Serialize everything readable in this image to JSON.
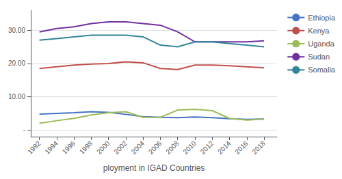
{
  "chart_data": {
    "type": "line",
    "xlabel": "ployment in IGAD Countries",
    "x": [
      1992,
      1994,
      1996,
      1998,
      2000,
      2002,
      2004,
      2006,
      2008,
      2010,
      2012,
      2014,
      2016,
      2018
    ],
    "series": [
      {
        "name": "Ethiopia",
        "color": "#4472C4",
        "values": [
          4.8,
          5.0,
          5.2,
          5.5,
          5.3,
          4.7,
          4.0,
          3.8,
          3.7,
          3.9,
          3.7,
          3.4,
          3.2,
          3.3
        ]
      },
      {
        "name": "Kenya",
        "color": "#C0504D",
        "values": [
          18.5,
          19.0,
          19.5,
          19.8,
          20.0,
          20.5,
          20.2,
          18.5,
          18.2,
          19.5,
          19.5,
          19.3,
          19.0,
          18.7
        ]
      },
      {
        "name": "Uganda",
        "color": "#9BBB59",
        "values": [
          2.0,
          2.8,
          3.5,
          4.5,
          5.2,
          5.5,
          3.8,
          3.8,
          6.0,
          6.2,
          5.8,
          3.5,
          3.0,
          3.3
        ]
      },
      {
        "name": "Sudan",
        "color": "#7030A0",
        "values": [
          29.5,
          30.5,
          31.0,
          32.0,
          32.5,
          32.5,
          32.0,
          31.5,
          29.5,
          26.5,
          26.5,
          26.5,
          26.5,
          26.8
        ]
      },
      {
        "name": "Somalia",
        "color": "#31849B",
        "values": [
          27.0,
          27.5,
          28.0,
          28.5,
          28.5,
          28.5,
          28.0,
          25.5,
          25.0,
          26.5,
          26.5,
          26.0,
          25.5,
          25.0
        ]
      }
    ],
    "xlim": [
      1991,
      2019.5
    ],
    "xticks": [
      1992,
      1994,
      1996,
      1998,
      2000,
      2002,
      2004,
      2006,
      2008,
      2010,
      2012,
      2014,
      2016,
      2018
    ],
    "ylim": [
      -2,
      36
    ],
    "yticks": [
      {
        "value": 0,
        "label": "-"
      },
      {
        "value": 10,
        "label": "10.00"
      },
      {
        "value": 20,
        "label": "20.00"
      },
      {
        "value": 30,
        "label": "30.00"
      }
    ],
    "grid": true,
    "legend": "right"
  }
}
